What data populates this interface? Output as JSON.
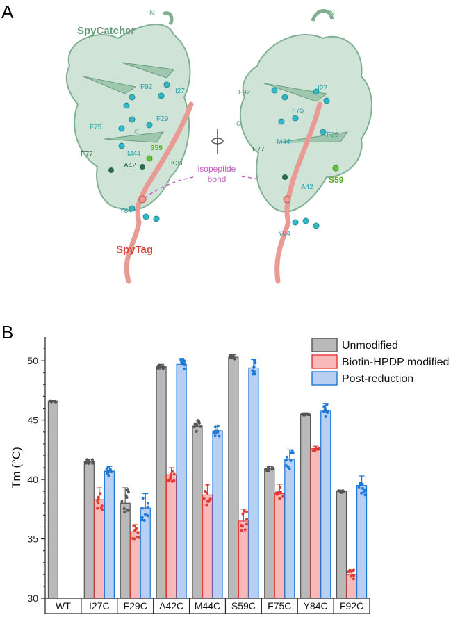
{
  "panel_a": {
    "letter": "A",
    "protein_label": "SpyCatcher",
    "tag_label": "SpyTag",
    "n_terminus": "N",
    "c_terminus": "C",
    "bond_label_line1": "isopeptide",
    "bond_label_line2": "bond",
    "residues": [
      "F92",
      "I27",
      "F75",
      "F29",
      "C",
      "M44",
      "S59",
      "E77",
      "A42",
      "K31",
      "Y84"
    ]
  },
  "panel_b": {
    "letter": "B"
  },
  "colors": {
    "unmodified": "#b9b9b9",
    "unmodified_border": "#555555",
    "biotin": "#f7b9b9",
    "biotin_border": "#e53935",
    "post_reduction": "#b6cff2",
    "post_reduction_border": "#1e78d6",
    "protein": "#8fbfa2",
    "protein_dark": "#5f9a78",
    "tag": "#e89a93",
    "side_chain": "#35b8c4",
    "s59": "#6cc03a",
    "bond": "#c060c0"
  },
  "chart_data": {
    "type": "bar",
    "title": "",
    "xlabel": "",
    "ylabel": "Tm (°C)",
    "ylim": [
      30,
      52
    ],
    "yticks": [
      30,
      35,
      40,
      45,
      50
    ],
    "categories": [
      "WT",
      "I27C",
      "F29C",
      "A42C",
      "M44C",
      "S59C",
      "F75C",
      "Y84C",
      "F92C"
    ],
    "legend_position": "top-right",
    "grid": false,
    "series": [
      {
        "name": "Unmodified",
        "values": [
          46.6,
          41.5,
          38.0,
          49.5,
          44.5,
          50.3,
          40.9,
          45.5,
          39.0
        ],
        "errors": [
          0.1,
          0.2,
          1.3,
          0.2,
          0.5,
          0.2,
          0.2,
          0.1,
          0.1
        ]
      },
      {
        "name": "Biotin-HPDP modified",
        "values": [
          null,
          38.3,
          35.6,
          40.4,
          38.7,
          36.5,
          38.8,
          42.6,
          32.0
        ],
        "errors": [
          null,
          1.0,
          0.6,
          0.6,
          0.9,
          1.0,
          0.8,
          0.2,
          0.4
        ]
      },
      {
        "name": "Post-reduction",
        "values": [
          null,
          40.7,
          37.6,
          49.7,
          44.1,
          49.4,
          41.7,
          45.8,
          39.5
        ],
        "errors": [
          null,
          0.4,
          1.2,
          0.5,
          0.5,
          0.7,
          0.8,
          0.6,
          0.8
        ]
      }
    ]
  }
}
